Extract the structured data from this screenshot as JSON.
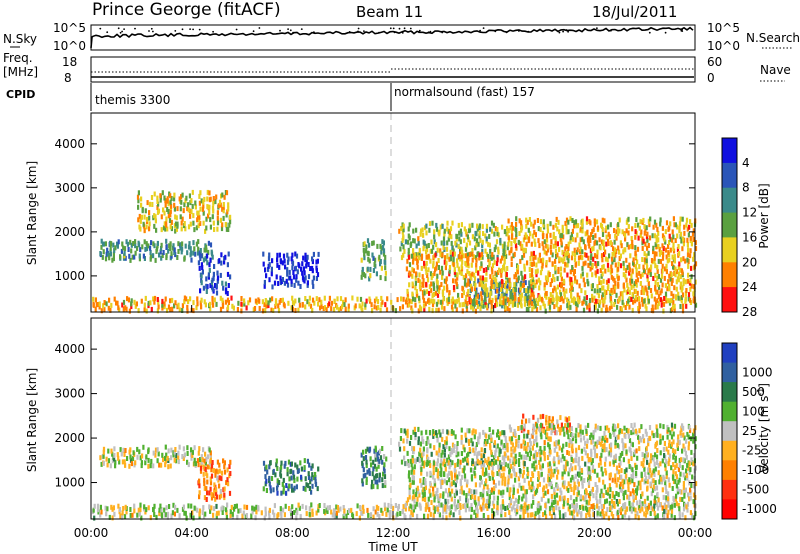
{
  "header": {
    "station": "Prince George (fitACF)",
    "beam": "Beam 11",
    "date": "18/Jul/2011"
  },
  "top_panels": {
    "nsky_label": "N.Sky",
    "nsky_ticks": [
      "10^5",
      "10^0"
    ],
    "nsearch_label": "N.Search",
    "nsearch_ticks": [
      "10^5",
      "10^0"
    ],
    "freq_label": "Freq.",
    "freq_unit": "[MHz]",
    "freq_ticks": [
      "18",
      "8"
    ],
    "nave_label": "Nave",
    "nave_ticks": [
      "60",
      "0"
    ],
    "cpid_label": "CPID",
    "cpid_segments": [
      {
        "start_hour": 0,
        "label": "themis 3300"
      },
      {
        "start_hour": 12,
        "label": "normalsound (fast) 157"
      }
    ]
  },
  "chart_data": [
    {
      "type": "heatmap",
      "panel": "power",
      "ylabel": "Slant Range [km]",
      "yticks": [
        "1000",
        "2000",
        "3000",
        "4000"
      ],
      "ylim": [
        180,
        4700
      ],
      "xlim": [
        0,
        24
      ],
      "colorbar": {
        "label": "Power [dB]",
        "ticks": [
          "4",
          "8",
          "12",
          "16",
          "20",
          "24",
          "28"
        ],
        "colors": [
          "#1010e0",
          "#2a55b8",
          "#3a8a8a",
          "#5aa040",
          "#e8d020",
          "#ff8000",
          "#ff1010"
        ]
      },
      "echo_regions": [
        {
          "t0": 0.3,
          "t1": 4.8,
          "r0": 1350,
          "r1": 1800,
          "level": 0.6
        },
        {
          "t0": 4.2,
          "t1": 5.5,
          "r0": 600,
          "r1": 1500,
          "level": 0.8
        },
        {
          "t0": 6.8,
          "t1": 9.0,
          "r0": 750,
          "r1": 1500,
          "level": 0.9
        },
        {
          "t0": 1.8,
          "t1": 5.5,
          "r0": 2000,
          "r1": 2900,
          "level": 0.35
        },
        {
          "t0": 10.7,
          "t1": 11.7,
          "r0": 900,
          "r1": 1800,
          "level": 0.55
        },
        {
          "t0": 12.2,
          "t1": 16.5,
          "r0": 1400,
          "r1": 2200,
          "level": 0.45
        },
        {
          "t0": 15.0,
          "t1": 17.5,
          "r0": 300,
          "r1": 900,
          "level": 0.65
        },
        {
          "t0": 12.5,
          "t1": 24.0,
          "r0": 400,
          "r1": 1500,
          "level": 0.3
        },
        {
          "t0": 16.5,
          "t1": 24.0,
          "r0": 1500,
          "r1": 2300,
          "level": 0.3
        },
        {
          "t0": 0.0,
          "t1": 24.0,
          "r0": 200,
          "r1": 500,
          "level": 0.3
        }
      ]
    },
    {
      "type": "heatmap",
      "panel": "velocity",
      "xlabel": "Time UT",
      "xticks": [
        "00:00",
        "04:00",
        "08:00",
        "12:00",
        "16:00",
        "20:00",
        "00:00"
      ],
      "ylabel": "Slant Range [km]",
      "yticks": [
        "1000",
        "2000",
        "3000",
        "4000"
      ],
      "ylim": [
        180,
        4700
      ],
      "xlim": [
        0,
        24
      ],
      "colorbar": {
        "label": "Velocity [m s^-1]",
        "ticks": [
          "1000",
          "500",
          "100",
          "25",
          "-25",
          "-100",
          "-500",
          "-1000"
        ],
        "colors": [
          "#2040c0",
          "#3060a0",
          "#2a7a4a",
          "#50b030",
          "#c0c0c0",
          "#ffb020",
          "#ff8000",
          "#ff3010",
          "#ff0000"
        ]
      },
      "echo_regions": [
        {
          "t0": 0.3,
          "t1": 4.8,
          "r0": 1350,
          "r1": 1800,
          "level": 0.5
        },
        {
          "t0": 4.2,
          "t1": 5.5,
          "r0": 600,
          "r1": 1500,
          "level": 0.7
        },
        {
          "t0": 6.8,
          "t1": 9.0,
          "r0": 750,
          "r1": 1500,
          "level": 0.25
        },
        {
          "t0": 10.7,
          "t1": 11.7,
          "r0": 900,
          "r1": 1800,
          "level": 0.3
        },
        {
          "t0": 12.2,
          "t1": 16.5,
          "r0": 1400,
          "r1": 2200,
          "level": 0.45
        },
        {
          "t0": 17.0,
          "t1": 19.0,
          "r0": 2100,
          "r1": 2500,
          "level": 0.7
        },
        {
          "t0": 12.5,
          "t1": 24.0,
          "r0": 400,
          "r1": 1500,
          "level": 0.5
        },
        {
          "t0": 16.5,
          "t1": 24.0,
          "r0": 1500,
          "r1": 2300,
          "level": 0.5
        },
        {
          "t0": 0.0,
          "t1": 24.0,
          "r0": 200,
          "r1": 500,
          "level": 0.5
        }
      ]
    }
  ]
}
